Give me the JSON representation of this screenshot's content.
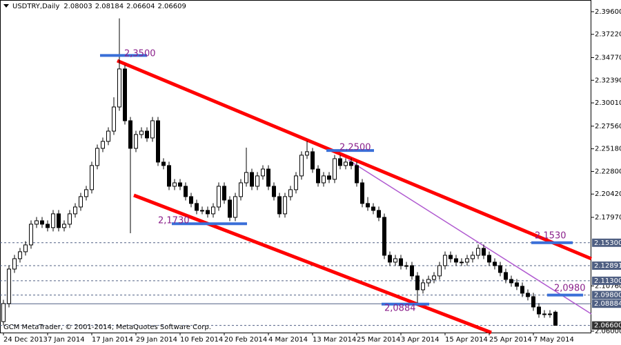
{
  "chart_data": {
    "type": "candlestick",
    "title": "USDTRY,Daily",
    "footer": "GCM MetaTrader, © 2001-2014, MetaQuotes Software Corp.",
    "categories": [
      "24 Dec 2013",
      null,
      null,
      null,
      null,
      null,
      null,
      null,
      "7 Jan 2014",
      null,
      null,
      null,
      null,
      null,
      null,
      null,
      "17 Jan 2014",
      null,
      null,
      null,
      null,
      null,
      null,
      null,
      "29 Jan 2014",
      null,
      null,
      null,
      null,
      null,
      null,
      null,
      "10 Feb 2014",
      null,
      null,
      null,
      null,
      null,
      null,
      null,
      "20 Feb 2014",
      null,
      null,
      null,
      null,
      null,
      null,
      null,
      "4 Mar 2014",
      null,
      null,
      null,
      null,
      null,
      null,
      null,
      "13 Mar 2014",
      null,
      null,
      null,
      null,
      null,
      null,
      null,
      "25 Mar 2014",
      null,
      null,
      null,
      null,
      null,
      null,
      null,
      "3 Apr 2014",
      null,
      null,
      null,
      null,
      null,
      null,
      null,
      "15 Apr 2014",
      null,
      null,
      null,
      null,
      null,
      null,
      null,
      "25 Apr 2014",
      null,
      null,
      null,
      null,
      null,
      null,
      null,
      "7 May 2014",
      null,
      null,
      null,
      null
    ],
    "open": [
      2.07,
      2.089,
      2.1253,
      2.1362,
      2.1435,
      2.1507,
      2.1725,
      2.1761,
      2.1725,
      2.1689,
      2.1834,
      2.1689,
      2.1725,
      2.1834,
      2.1906,
      2.2015,
      2.2088,
      2.2342,
      2.2523,
      2.2596,
      2.2704,
      2.2958,
      2.3358,
      2.2813,
      2.2523,
      2.2668,
      2.2704,
      2.2632,
      2.2813,
      2.2378,
      2.2342,
      2.2124,
      2.216,
      2.2124,
      2.2015,
      2.1943,
      2.187,
      2.187,
      2.1834,
      2.1906,
      2.2124,
      2.1979,
      2.1797,
      2.2015,
      2.216,
      2.2269,
      2.2124,
      2.2233,
      2.2305,
      2.2124,
      2.2015,
      2.1834,
      2.2015,
      2.2088,
      2.2233,
      2.2451,
      2.2487,
      2.2305,
      2.216,
      2.2233,
      2.2197,
      2.2414,
      2.2342,
      2.2378,
      2.2342,
      2.216,
      2.1943,
      2.1906,
      2.187,
      2.1797,
      2.1398,
      2.1326,
      2.1362,
      2.1289,
      2.1289,
      2.1181,
      2.1035,
      2.1108,
      2.1144,
      2.1181,
      2.1289,
      2.1398,
      2.1362,
      2.1326,
      2.1326,
      2.1362,
      2.1398,
      2.1471,
      2.1398,
      2.1326,
      2.1289,
      2.1217,
      2.1144,
      2.1108,
      2.1072,
      2.0999,
      2.0963,
      2.0854,
      2.0781,
      2.0781,
      2.08003
    ],
    "high": [
      2.093,
      2.1293,
      2.1402,
      2.1475,
      2.1547,
      2.1765,
      2.1801,
      2.1801,
      2.1765,
      2.1874,
      2.1874,
      2.1765,
      2.1874,
      2.1946,
      2.2055,
      2.2128,
      2.2382,
      2.2563,
      2.2636,
      2.2744,
      2.306,
      2.389,
      2.3398,
      2.2853,
      2.2708,
      2.2744,
      2.2744,
      2.2853,
      2.2853,
      2.2418,
      2.2382,
      2.22,
      2.22,
      2.2164,
      2.2055,
      2.1983,
      2.191,
      2.191,
      2.1946,
      2.2164,
      2.2164,
      2.2019,
      2.2055,
      2.22,
      2.253,
      2.2309,
      2.2273,
      2.2345,
      2.2345,
      2.2164,
      2.2055,
      2.2055,
      2.2128,
      2.2273,
      2.2491,
      2.26,
      2.2527,
      2.2345,
      2.2273,
      2.2273,
      2.2454,
      2.2454,
      2.2418,
      2.2418,
      2.2382,
      2.22,
      2.201,
      2.1946,
      2.191,
      2.1837,
      2.1438,
      2.1402,
      2.1402,
      2.1329,
      2.1329,
      2.1221,
      2.1148,
      2.1184,
      2.1221,
      2.1329,
      2.1438,
      2.1438,
      2.1402,
      2.1366,
      2.1402,
      2.1438,
      2.1511,
      2.1511,
      2.1438,
      2.1366,
      2.1329,
      2.1257,
      2.1184,
      2.1148,
      2.1112,
      2.1039,
      2.1003,
      2.0894,
      2.0821,
      2.0821,
      2.08184
    ],
    "low": [
      2.066,
      2.085,
      2.1213,
      2.1322,
      2.1395,
      2.1467,
      2.1685,
      2.1685,
      2.1649,
      2.1649,
      2.1649,
      2.1649,
      2.1685,
      2.1794,
      2.1866,
      2.1975,
      2.2048,
      2.2302,
      2.2483,
      2.2556,
      2.2664,
      2.2918,
      2.2773,
      2.163,
      2.2483,
      2.2628,
      2.2592,
      2.2592,
      2.2338,
      2.2302,
      2.2084,
      2.2084,
      2.2084,
      2.1975,
      2.1903,
      2.183,
      2.183,
      2.1794,
      2.1794,
      2.1866,
      2.1939,
      2.1757,
      2.1757,
      2.1975,
      2.212,
      2.2084,
      2.2084,
      2.2193,
      2.2084,
      2.1975,
      2.1794,
      2.1794,
      2.1975,
      2.2048,
      2.2193,
      2.2411,
      2.2265,
      2.212,
      2.212,
      2.2157,
      2.2157,
      2.2302,
      2.2302,
      2.2302,
      2.212,
      2.1903,
      2.1866,
      2.183,
      2.1757,
      2.1358,
      2.1286,
      2.1286,
      2.1249,
      2.1249,
      2.1141,
      2.09,
      2.0995,
      2.1068,
      2.1104,
      2.1141,
      2.1249,
      2.1322,
      2.1286,
      2.1286,
      2.1286,
      2.1322,
      2.1358,
      2.1358,
      2.1286,
      2.1249,
      2.1177,
      2.1104,
      2.1068,
      2.1032,
      2.0959,
      2.0923,
      2.0814,
      2.0741,
      2.0741,
      2.0741,
      2.06604
    ],
    "close": [
      2.089,
      2.1253,
      2.1362,
      2.1435,
      2.1507,
      2.1725,
      2.1761,
      2.1725,
      2.1689,
      2.1834,
      2.1689,
      2.1725,
      2.1834,
      2.1906,
      2.2015,
      2.2088,
      2.2342,
      2.2523,
      2.2596,
      2.2704,
      2.2958,
      2.3358,
      2.2813,
      2.2523,
      2.2668,
      2.2704,
      2.2632,
      2.2813,
      2.2378,
      2.2342,
      2.2124,
      2.216,
      2.2124,
      2.2015,
      2.1943,
      2.187,
      2.187,
      2.1834,
      2.1906,
      2.2124,
      2.1979,
      2.1797,
      2.2015,
      2.216,
      2.2269,
      2.2124,
      2.2233,
      2.2305,
      2.2124,
      2.2015,
      2.1834,
      2.2015,
      2.2088,
      2.2233,
      2.2451,
      2.2487,
      2.2305,
      2.216,
      2.2233,
      2.2197,
      2.2414,
      2.2342,
      2.2378,
      2.2342,
      2.216,
      2.1943,
      2.1906,
      2.187,
      2.1797,
      2.1398,
      2.1326,
      2.1362,
      2.1289,
      2.1289,
      2.1181,
      2.1035,
      2.1108,
      2.1144,
      2.1181,
      2.1289,
      2.1398,
      2.1362,
      2.1326,
      2.1326,
      2.1362,
      2.1398,
      2.1471,
      2.1398,
      2.1326,
      2.1289,
      2.1217,
      2.1144,
      2.1108,
      2.1072,
      2.0999,
      2.0963,
      2.0854,
      2.0781,
      2.0781,
      2.0781,
      2.06609
    ],
    "up_color": "#ffffff",
    "down_color": "#000000",
    "wick_color": "#000000",
    "ylim": [
      2.0585,
      2.4083
    ],
    "yticks": [
      {
        "value": 2.396,
        "label": "2.39600"
      },
      {
        "value": 2.3722,
        "label": "2.37220"
      },
      {
        "value": 2.3477,
        "label": "2.34770"
      },
      {
        "value": 2.3239,
        "label": "2.32390"
      },
      {
        "value": 2.3001,
        "label": "2.30010"
      },
      {
        "value": 2.2756,
        "label": "2.27560"
      },
      {
        "value": 2.2518,
        "label": "2.25180"
      },
      {
        "value": 2.228,
        "label": "2.22800"
      },
      {
        "value": 2.2042,
        "label": "2.20420"
      },
      {
        "value": 2.1797,
        "label": "2.17970"
      },
      {
        "value": 2.1076,
        "label": "2.10760"
      },
      {
        "value": 2.06,
        "label": "2.06000"
      }
    ],
    "levels": [
      {
        "value": 2.153,
        "label": "2.15300"
      },
      {
        "value": 2.12891,
        "label": "2.12891"
      },
      {
        "value": 2.113,
        "label": "2.11300"
      },
      {
        "value": 2.098,
        "label": "2.09800"
      },
      {
        "value": 2.08884,
        "label": "2.08884"
      },
      {
        "value": 2.066,
        "label": "2.06600"
      }
    ],
    "level_color": "#4f5f82",
    "annotations": [
      {
        "value": 2.35,
        "label": "2,3500"
      },
      {
        "value": 2.25,
        "label": "2,2500"
      },
      {
        "value": 2.173,
        "label": "2,1730"
      },
      {
        "value": 2.153,
        "label": "2,1530"
      },
      {
        "value": 2.098,
        "label": "2,0980"
      },
      {
        "value": 2.0884,
        "label": "2,0884"
      }
    ],
    "annotation_color": "#3a6fd8",
    "annotation_text_color": "#8a1f8a"
  }
}
